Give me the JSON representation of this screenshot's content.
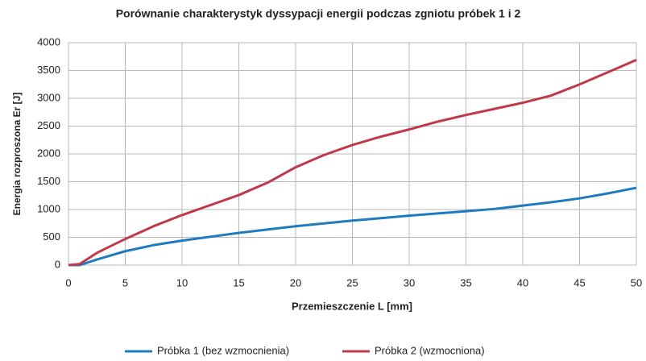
{
  "chart_data": {
    "type": "line",
    "title": "Porównanie charakterystyk dyssypacji energii podczas zgniotu próbek 1 i 2",
    "x_label": "Przemieszczenie  L  [mm]",
    "y_label": "Energia  rozproszona  Er  [J]",
    "x": [
      0,
      1,
      2.5,
      5,
      7.5,
      10,
      12.5,
      15,
      17.5,
      20,
      22.5,
      25,
      27.5,
      30,
      32.5,
      35,
      37.5,
      40,
      42.5,
      45,
      47.5,
      50
    ],
    "series": [
      {
        "name": "Próbka 1 (bez wzmocnienia)",
        "color": "#1f7bbf",
        "values": [
          0,
          0,
          100,
          250,
          360,
          440,
          510,
          580,
          640,
          700,
          750,
          800,
          845,
          890,
          930,
          970,
          1010,
          1070,
          1130,
          1200,
          1290,
          1390
        ]
      },
      {
        "name": "Próbka 2 (wzmocniona)",
        "color": "#c0394b",
        "values": [
          0,
          20,
          220,
          470,
          700,
          900,
          1080,
          1260,
          1480,
          1760,
          1980,
          2160,
          2310,
          2440,
          2580,
          2700,
          2810,
          2920,
          3050,
          3250,
          3470,
          3690
        ]
      }
    ],
    "xlim": [
      0,
      50
    ],
    "xticks": [
      0,
      5,
      10,
      15,
      20,
      25,
      30,
      35,
      40,
      45,
      50
    ],
    "ylim": [
      0,
      4000
    ],
    "yticks": [
      0,
      500,
      1000,
      1500,
      2000,
      2500,
      3000,
      3500,
      4000
    ],
    "grid": true,
    "legend": "bottom"
  }
}
